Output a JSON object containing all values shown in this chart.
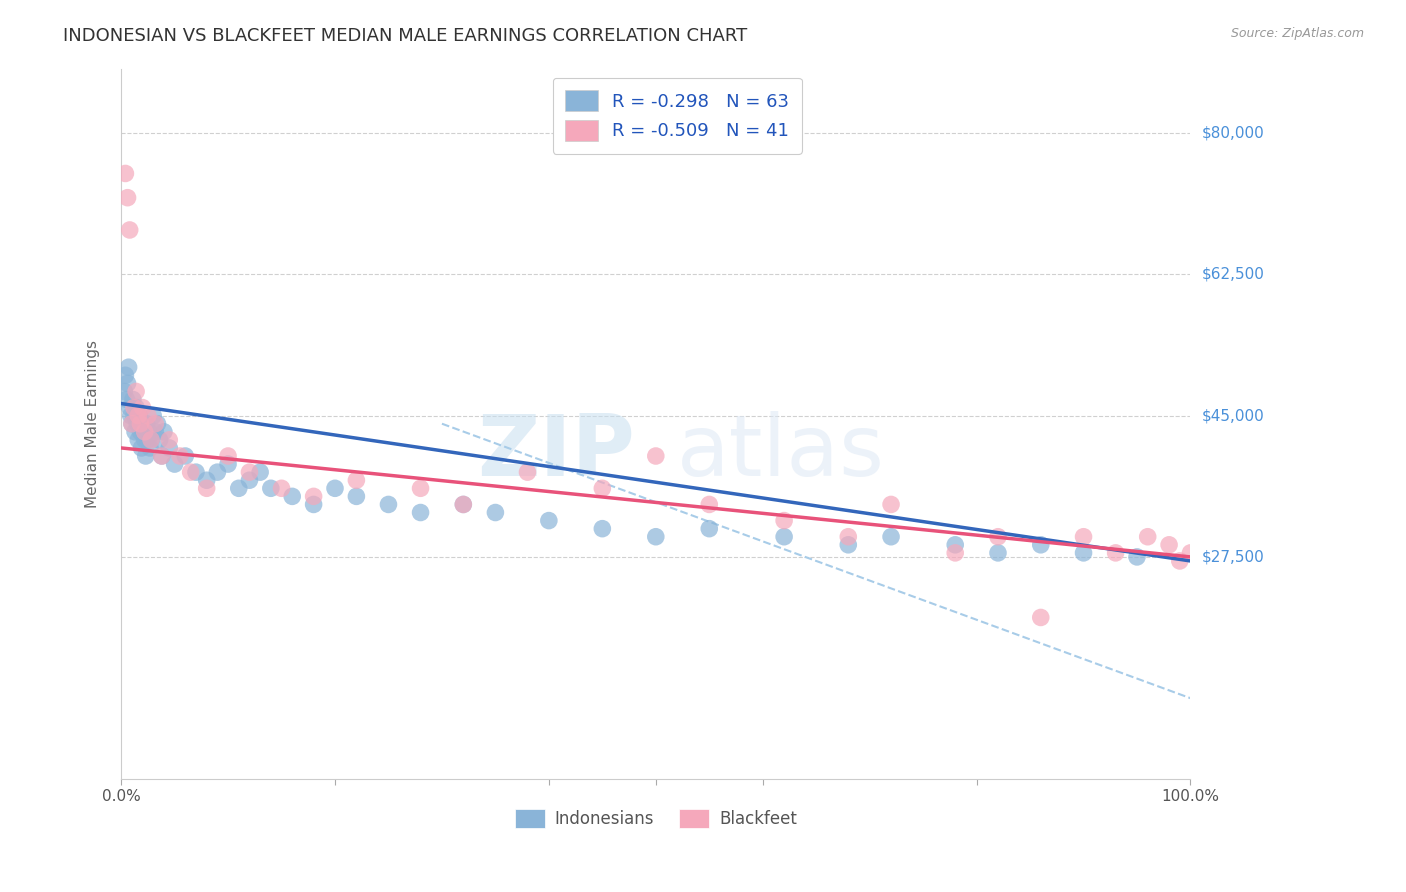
{
  "title": "INDONESIAN VS BLACKFEET MEDIAN MALE EARNINGS CORRELATION CHART",
  "source": "Source: ZipAtlas.com",
  "ylabel": "Median Male Earnings",
  "yticks": [
    0,
    27500,
    45000,
    62500,
    80000
  ],
  "ytick_labels": [
    "",
    "$27,500",
    "$45,000",
    "$62,500",
    "$80,000"
  ],
  "xlim": [
    0,
    1
  ],
  "ylim": [
    8000,
    88000
  ],
  "watermark_zip": "ZIP",
  "watermark_atlas": "atlas",
  "legend_r1": "-0.298",
  "legend_n1": "63",
  "legend_r2": "-0.509",
  "legend_n2": "41",
  "legend_label1": "Indonesians",
  "legend_label2": "Blackfeet",
  "blue_color": "#8ab4d8",
  "pink_color": "#f5a8bb",
  "blue_line_color": "#3366bb",
  "pink_line_color": "#e8527a",
  "dashed_line_color": "#a8cce8",
  "indonesian_x": [
    0.003,
    0.004,
    0.005,
    0.006,
    0.007,
    0.008,
    0.009,
    0.01,
    0.011,
    0.012,
    0.013,
    0.014,
    0.015,
    0.016,
    0.017,
    0.018,
    0.019,
    0.02,
    0.021,
    0.022,
    0.023,
    0.024,
    0.025,
    0.026,
    0.027,
    0.028,
    0.03,
    0.032,
    0.034,
    0.036,
    0.038,
    0.04,
    0.045,
    0.05,
    0.06,
    0.07,
    0.08,
    0.09,
    0.1,
    0.11,
    0.12,
    0.13,
    0.14,
    0.16,
    0.18,
    0.2,
    0.22,
    0.25,
    0.28,
    0.32,
    0.35,
    0.4,
    0.45,
    0.5,
    0.55,
    0.62,
    0.68,
    0.72,
    0.78,
    0.82,
    0.86,
    0.9,
    0.95
  ],
  "indonesian_y": [
    48000,
    50000,
    47000,
    49000,
    51000,
    46000,
    45000,
    44000,
    47000,
    45000,
    43000,
    46000,
    44000,
    42000,
    45000,
    43000,
    41000,
    44000,
    43000,
    42000,
    40000,
    44000,
    42000,
    43000,
    41000,
    42000,
    45000,
    43000,
    44000,
    42000,
    40000,
    43000,
    41000,
    39000,
    40000,
    38000,
    37000,
    38000,
    39000,
    36000,
    37000,
    38000,
    36000,
    35000,
    34000,
    36000,
    35000,
    34000,
    33000,
    34000,
    33000,
    32000,
    31000,
    30000,
    31000,
    30000,
    29000,
    30000,
    29000,
    28000,
    29000,
    28000,
    27500
  ],
  "blackfeet_x": [
    0.004,
    0.006,
    0.008,
    0.01,
    0.012,
    0.014,
    0.016,
    0.018,
    0.02,
    0.022,
    0.025,
    0.028,
    0.032,
    0.038,
    0.045,
    0.055,
    0.065,
    0.08,
    0.1,
    0.12,
    0.15,
    0.18,
    0.22,
    0.28,
    0.32,
    0.38,
    0.45,
    0.5,
    0.55,
    0.62,
    0.68,
    0.72,
    0.78,
    0.82,
    0.86,
    0.9,
    0.93,
    0.96,
    0.98,
    0.99,
    1.0
  ],
  "blackfeet_y": [
    75000,
    72000,
    68000,
    44000,
    46000,
    48000,
    45000,
    44000,
    46000,
    43000,
    45000,
    42000,
    44000,
    40000,
    42000,
    40000,
    38000,
    36000,
    40000,
    38000,
    36000,
    35000,
    37000,
    36000,
    34000,
    38000,
    36000,
    40000,
    34000,
    32000,
    30000,
    34000,
    28000,
    30000,
    20000,
    30000,
    28000,
    30000,
    29000,
    27000,
    28000
  ],
  "blue_trend_x": [
    0.0,
    1.0
  ],
  "blue_trend_y": [
    46500,
    27000
  ],
  "pink_trend_x": [
    0.0,
    1.0
  ],
  "pink_trend_y": [
    41000,
    27500
  ],
  "dashed_trend_x": [
    0.3,
    1.0
  ],
  "dashed_trend_y": [
    44000,
    10000
  ],
  "background_color": "#ffffff",
  "grid_color": "#d0d0d0",
  "title_fontsize": 13,
  "axis_label_fontsize": 11,
  "tick_fontsize": 11,
  "ytick_color_right": "#4a90d9",
  "source_text": "Source: ZipAtlas.com"
}
